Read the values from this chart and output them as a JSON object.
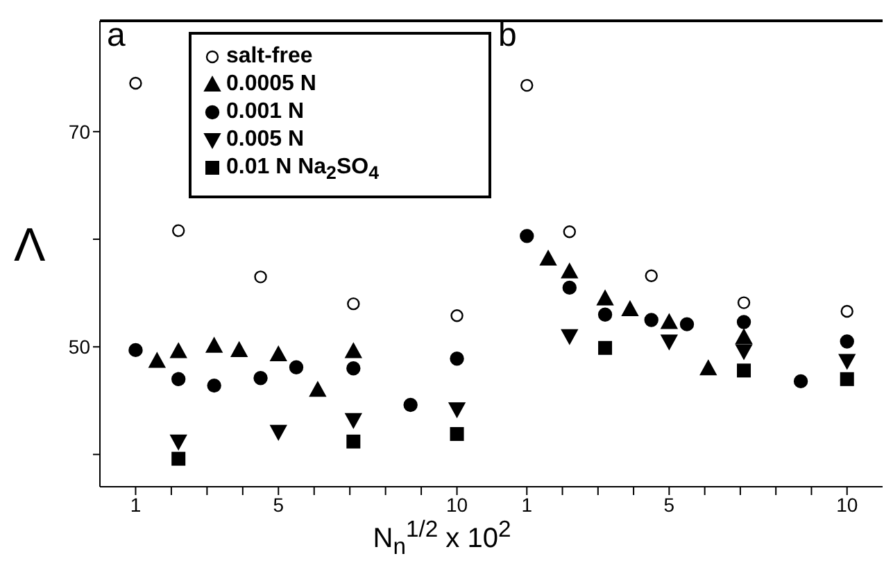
{
  "chart_data": [
    {
      "type": "scatter",
      "title": "a",
      "xlabel": "N$_{n}$$^{1/2}$ x 10$^{2}$",
      "ylabel": "Λ",
      "xlim": [
        0,
        11
      ],
      "ylim": [
        37,
        80.3
      ],
      "xticks": [
        1,
        {
          "value": 2,
          "label": null
        },
        {
          "value": 3,
          "label": null
        },
        {
          "value": 4,
          "label": null
        },
        5,
        {
          "value": 6,
          "label": null
        },
        {
          "value": 7,
          "label": null
        },
        {
          "value": 8,
          "label": null
        },
        {
          "value": 9,
          "label": null
        },
        10
      ],
      "yticks": [
        {
          "value": 40,
          "label": null
        },
        50,
        {
          "value": 60,
          "label": null
        },
        70
      ],
      "legend": "top right",
      "grid": false,
      "series": [
        {
          "name": "salt-free",
          "color": "#000000",
          "marker": "circle-open",
          "x": [
            1,
            2.2,
            4.5,
            7.1,
            10
          ],
          "values": [
            74.5,
            60.8,
            56.5,
            54.0,
            52.9
          ]
        },
        {
          "name": "0.0005 N",
          "color": "#000000",
          "marker": "triangle",
          "x": [
            1.6,
            2.2,
            3.2,
            3.9,
            5,
            6.1,
            7.1
          ],
          "values": [
            48.7,
            49.6,
            50.1,
            49.7,
            49.3,
            46.0,
            49.6
          ]
        },
        {
          "name": "0.001 N",
          "color": "#000000",
          "marker": "circle",
          "x": [
            1,
            2.2,
            3.2,
            4.5,
            5.5,
            7.1,
            8.7,
            10
          ],
          "values": [
            49.7,
            47.0,
            46.4,
            47.1,
            48.1,
            48.0,
            44.6,
            48.9
          ]
        },
        {
          "name": "0.005 N",
          "color": "#000000",
          "marker": "triangle-down",
          "x": [
            2.2,
            5,
            7.1,
            10
          ],
          "values": [
            41.2,
            42.1,
            43.2,
            44.2
          ]
        },
        {
          "name": "0.01 N Na$_{2}$SO$_{4}$",
          "color": "#000000",
          "marker": "square",
          "x": [
            2.2,
            7.1,
            10
          ],
          "values": [
            39.6,
            41.2,
            41.9
          ]
        }
      ]
    },
    {
      "type": "scatter",
      "title": "b",
      "xlim": [
        0,
        11
      ],
      "ylim": [
        37,
        80.3
      ],
      "tick_labels": "x",
      "xticks": [
        1,
        {
          "value": 2,
          "label": null
        },
        {
          "value": 3,
          "label": null
        },
        {
          "value": 4,
          "label": null
        },
        5,
        {
          "value": 6,
          "label": null
        },
        {
          "value": 7,
          "label": null
        },
        {
          "value": 8,
          "label": null
        },
        {
          "value": 9,
          "label": null
        },
        10
      ],
      "grid": false,
      "series": [
        {
          "color": "#000000",
          "marker": "circle-open",
          "x": [
            1,
            2.2,
            4.5,
            7.1,
            10
          ],
          "values": [
            74.3,
            60.7,
            56.6,
            54.1,
            53.3
          ]
        },
        {
          "color": "#000000",
          "marker": "triangle",
          "x": [
            1.6,
            2.2,
            3.2,
            3.9,
            5,
            6.1,
            7.1
          ],
          "values": [
            58.2,
            57.0,
            54.5,
            53.5,
            52.3,
            48.0,
            50.9
          ]
        },
        {
          "color": "#000000",
          "marker": "circle",
          "x": [
            1,
            2.2,
            3.2,
            4.5,
            5.5,
            7.1,
            8.7,
            10
          ],
          "values": [
            60.3,
            55.5,
            53.0,
            52.5,
            52.1,
            52.3,
            46.8,
            50.5
          ]
        },
        {
          "color": "#000000",
          "marker": "triangle-down",
          "x": [
            2.2,
            5,
            7.1,
            10
          ],
          "values": [
            51.0,
            50.5,
            49.6,
            48.7
          ]
        },
        {
          "color": "#000000",
          "marker": "square",
          "x": [
            3.2,
            7.1,
            10
          ],
          "values": [
            49.9,
            47.8,
            47.0
          ]
        }
      ]
    }
  ]
}
